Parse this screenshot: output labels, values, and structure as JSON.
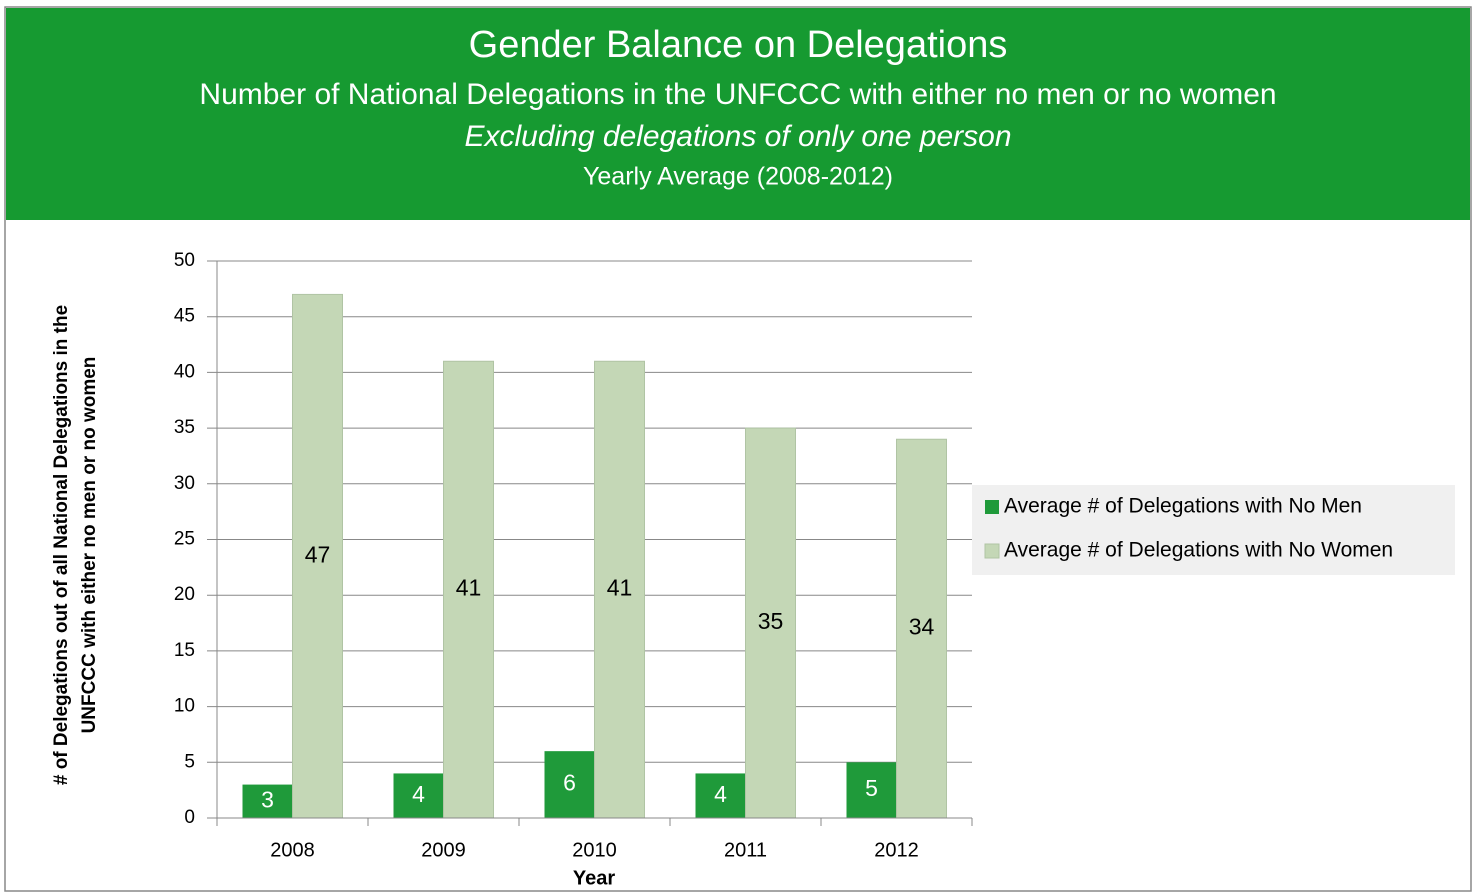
{
  "chart_data": {
    "type": "bar",
    "title": "Gender Balance on Delegations",
    "subtitle": "Number of National Delegations in the UNFCCC with either no men or no women",
    "notes": [
      "Excluding delegations of only one person",
      "Yearly Average (2008-2012)"
    ],
    "xlabel": "Year",
    "ylabel": [
      "# of Delegations out of all National Delegations in the",
      "UNFCCC with either no men or no women"
    ],
    "categories": [
      "2008",
      "2009",
      "2010",
      "2011",
      "2012"
    ],
    "series": [
      {
        "name": "Average # of Delegations with No Men",
        "color": "#1f9a3a",
        "values": [
          3,
          4,
          6,
          4,
          5
        ]
      },
      {
        "name": "Average # of Delegations with No Women",
        "color": "#c4d7b6",
        "values": [
          47,
          41,
          41,
          35,
          34
        ]
      }
    ],
    "ylim": [
      0,
      50
    ],
    "yticks": [
      0,
      5,
      10,
      15,
      20,
      25,
      30,
      35,
      40,
      45,
      50
    ],
    "grid": true,
    "legend": "right"
  }
}
